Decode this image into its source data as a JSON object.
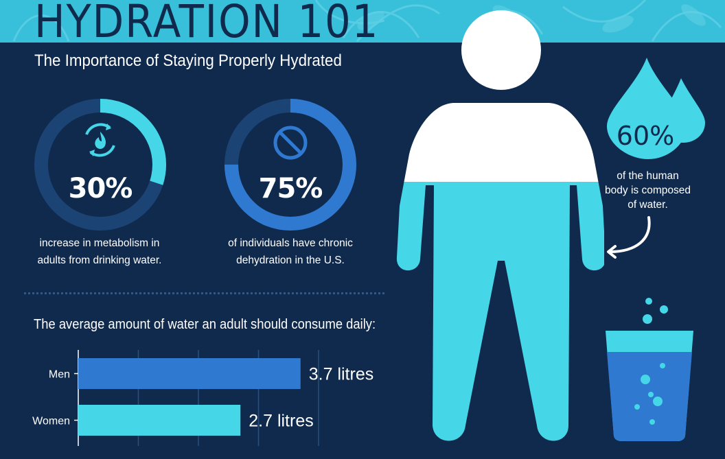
{
  "header": {
    "title": "HYDRATION 101",
    "subtitle": "The Importance of Staying Properly Hydrated"
  },
  "stats": [
    {
      "value": "30%",
      "caption_line1": "increase in metabolism in",
      "caption_line2": "adults from drinking water.",
      "icon": "metabolism-flame-icon",
      "fraction": 0.3
    },
    {
      "value": "75%",
      "caption_line1": "of individuals have chronic",
      "caption_line2": "dehydration in the U.S.",
      "icon": "no-entry-icon",
      "fraction": 0.75
    }
  ],
  "body_stat": {
    "value": "60%",
    "caption_line1": "of the human",
    "caption_line2": "body is composed",
    "caption_line3": "of water.",
    "fraction": 0.6
  },
  "colors": {
    "background": "#0f2a4c",
    "banner": "#38bfd9",
    "cyan": "#45d6e8",
    "blue": "#2f7ad0",
    "ring_track": "#1b4475"
  },
  "chart_data": {
    "type": "bar",
    "orientation": "horizontal",
    "title": "The average amount of water an adult should consume daily:",
    "categories": [
      "Men",
      "Women"
    ],
    "values": [
      3.7,
      2.7
    ],
    "value_labels": [
      "3.7 litres",
      "2.7 litres"
    ],
    "unit": "litres",
    "xlim": [
      0,
      4
    ],
    "grid": true
  }
}
